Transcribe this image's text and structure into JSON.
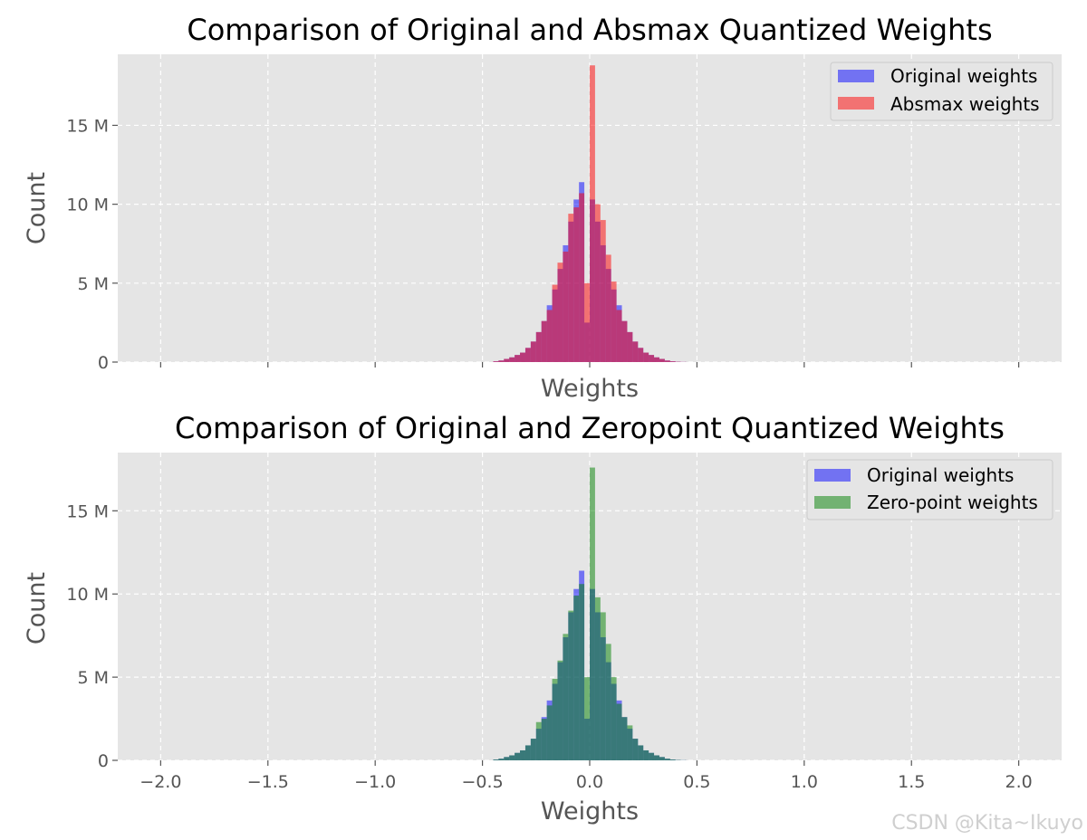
{
  "colors": {
    "panel_bg": "#e5e5e5",
    "grid": "#ffffff",
    "original": "#0000ff",
    "absmax": "#ff0000",
    "zeropoint": "#008000",
    "tick_text": "#555555"
  },
  "watermark": "CSDN @Kita~Ikuyo",
  "chart_data": [
    {
      "type": "histogram",
      "title": "Comparison of Original and Absmax Quantized Weights",
      "xlabel": "Weights",
      "ylabel": "Count",
      "xlim": [
        -2.2,
        2.2
      ],
      "ylim": [
        0,
        19.5
      ],
      "xticks": [
        -2.0,
        -1.5,
        -1.0,
        -0.5,
        0.0,
        0.5,
        1.0,
        1.5,
        2.0
      ],
      "xtick_labels_shown": false,
      "yticks": [
        0,
        5,
        10,
        15
      ],
      "ytick_labels": [
        "0",
        "5 M",
        "10 M",
        "15 M"
      ],
      "grid": true,
      "legend_position": "top-right",
      "bin_width": 0.025,
      "series": [
        {
          "name": "Original weights",
          "color": "#0000ff",
          "alpha": 0.5,
          "bins_start": [
            -0.45,
            -0.425,
            -0.4,
            -0.375,
            -0.35,
            -0.325,
            -0.3,
            -0.275,
            -0.25,
            -0.225,
            -0.2,
            -0.175,
            -0.15,
            -0.125,
            -0.1,
            -0.075,
            -0.05,
            -0.025,
            0.0,
            0.025,
            0.05,
            0.075,
            0.1,
            0.125,
            0.15,
            0.175,
            0.2,
            0.225,
            0.25,
            0.275,
            0.3,
            0.325,
            0.35,
            0.375,
            0.4,
            0.425
          ],
          "values": [
            0.05,
            0.1,
            0.2,
            0.3,
            0.45,
            0.6,
            0.9,
            1.3,
            1.9,
            2.6,
            3.6,
            4.6,
            5.9,
            7.4,
            8.9,
            10.3,
            11.4,
            2.5,
            10.3,
            8.9,
            7.4,
            5.9,
            4.6,
            3.6,
            2.6,
            1.9,
            1.3,
            0.9,
            0.6,
            0.45,
            0.3,
            0.2,
            0.1,
            0.05,
            0.02,
            0.01
          ]
        },
        {
          "name": "Absmax weights",
          "color": "#ff0000",
          "alpha": 0.5,
          "bins_start": [
            -0.45,
            -0.425,
            -0.4,
            -0.375,
            -0.35,
            -0.325,
            -0.3,
            -0.275,
            -0.25,
            -0.225,
            -0.2,
            -0.175,
            -0.15,
            -0.125,
            -0.1,
            -0.075,
            -0.05,
            -0.025,
            0.0,
            0.025,
            0.05,
            0.075,
            0.1,
            0.125,
            0.15,
            0.175,
            0.2,
            0.225,
            0.25,
            0.275,
            0.3,
            0.325,
            0.35,
            0.375,
            0.4,
            0.425
          ],
          "values": [
            0.05,
            0.1,
            0.2,
            0.3,
            0.45,
            0.6,
            0.9,
            1.3,
            1.9,
            2.6,
            3.3,
            4.9,
            6.3,
            7.0,
            9.4,
            9.8,
            10.7,
            5.0,
            18.8,
            10.0,
            9.0,
            6.8,
            5.1,
            3.3,
            2.6,
            1.9,
            1.3,
            0.9,
            0.6,
            0.45,
            0.3,
            0.2,
            0.1,
            0.05,
            0.02,
            0.01
          ]
        }
      ]
    },
    {
      "type": "histogram",
      "title": "Comparison of Original and Zeropoint Quantized Weights",
      "xlabel": "Weights",
      "ylabel": "Count",
      "xlim": [
        -2.2,
        2.2
      ],
      "ylim": [
        0,
        18.5
      ],
      "xticks": [
        -2.0,
        -1.5,
        -1.0,
        -0.5,
        0.0,
        0.5,
        1.0,
        1.5,
        2.0
      ],
      "xtick_labels": [
        "−2.0",
        "−1.5",
        "−1.0",
        "−0.5",
        "0.0",
        "0.5",
        "1.0",
        "1.5",
        "2.0"
      ],
      "xtick_labels_shown": true,
      "yticks": [
        0,
        5,
        10,
        15
      ],
      "ytick_labels": [
        "0",
        "5 M",
        "10 M",
        "15 M"
      ],
      "grid": true,
      "legend_position": "top-right",
      "bin_width": 0.025,
      "series": [
        {
          "name": "Original weights",
          "color": "#0000ff",
          "alpha": 0.5,
          "bins_start": [
            -0.45,
            -0.425,
            -0.4,
            -0.375,
            -0.35,
            -0.325,
            -0.3,
            -0.275,
            -0.25,
            -0.225,
            -0.2,
            -0.175,
            -0.15,
            -0.125,
            -0.1,
            -0.075,
            -0.05,
            -0.025,
            0.0,
            0.025,
            0.05,
            0.075,
            0.1,
            0.125,
            0.15,
            0.175,
            0.2,
            0.225,
            0.25,
            0.275,
            0.3,
            0.325,
            0.35,
            0.375,
            0.4,
            0.425
          ],
          "values": [
            0.05,
            0.1,
            0.2,
            0.3,
            0.45,
            0.6,
            0.9,
            1.3,
            1.9,
            2.6,
            3.6,
            4.6,
            5.9,
            7.4,
            8.9,
            10.3,
            11.4,
            2.5,
            10.3,
            8.9,
            7.4,
            5.9,
            4.6,
            3.6,
            2.6,
            1.9,
            1.3,
            0.9,
            0.6,
            0.45,
            0.3,
            0.2,
            0.1,
            0.05,
            0.02,
            0.01
          ]
        },
        {
          "name": "Zero-point weights",
          "color": "#008000",
          "alpha": 0.5,
          "bins_start": [
            -0.45,
            -0.425,
            -0.4,
            -0.375,
            -0.35,
            -0.325,
            -0.3,
            -0.275,
            -0.25,
            -0.225,
            -0.2,
            -0.175,
            -0.15,
            -0.125,
            -0.1,
            -0.075,
            -0.05,
            -0.025,
            0.0,
            0.025,
            0.05,
            0.075,
            0.1,
            0.125,
            0.15,
            0.175,
            0.2,
            0.225,
            0.25,
            0.275,
            0.3,
            0.325,
            0.35,
            0.375,
            0.4,
            0.425
          ],
          "values": [
            0.05,
            0.1,
            0.2,
            0.3,
            0.45,
            0.6,
            0.9,
            1.3,
            2.3,
            2.5,
            3.3,
            4.9,
            6.0,
            7.6,
            9.0,
            9.9,
            10.6,
            5.0,
            17.6,
            9.8,
            8.9,
            7.0,
            5.0,
            3.4,
            2.6,
            2.1,
            1.3,
            0.9,
            0.6,
            0.45,
            0.3,
            0.2,
            0.1,
            0.05,
            0.02,
            0.01
          ]
        }
      ]
    }
  ]
}
